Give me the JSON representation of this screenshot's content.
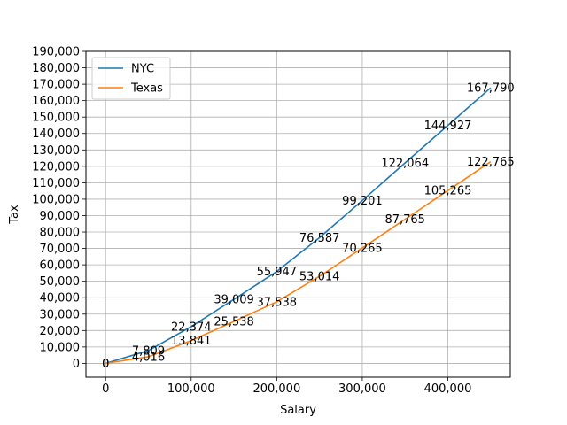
{
  "chart_data": {
    "type": "line",
    "title": "",
    "xlabel": "Salary",
    "ylabel": "Tax",
    "xlim": [
      -23000,
      473000
    ],
    "ylim": [
      -8400,
      190000
    ],
    "xticks": [
      0,
      100000,
      200000,
      300000,
      400000
    ],
    "xtick_labels": [
      "0",
      "100,000",
      "200,000",
      "300,000",
      "400,000"
    ],
    "yticks": [
      0,
      10000,
      20000,
      30000,
      40000,
      50000,
      60000,
      70000,
      80000,
      90000,
      100000,
      110000,
      120000,
      130000,
      140000,
      150000,
      160000,
      170000,
      180000,
      190000
    ],
    "ytick_labels": [
      "0",
      "10,000",
      "20,000",
      "30,000",
      "40,000",
      "50,000",
      "60,000",
      "70,000",
      "80,000",
      "90,000",
      "100,000",
      "110,000",
      "120,000",
      "130,000",
      "140,000",
      "150,000",
      "160,000",
      "170,000",
      "180,000",
      "190,000"
    ],
    "grid": true,
    "legend_position": "top-left",
    "series": [
      {
        "name": "NYC",
        "color": "#1f77b4",
        "x": [
          0,
          50000,
          100000,
          150000,
          200000,
          250000,
          300000,
          350000,
          400000,
          450000
        ],
        "y": [
          0,
          7809,
          22374,
          39009,
          55947,
          76587,
          99201,
          122064,
          144927,
          167790
        ],
        "labels": [
          "0",
          "7,809",
          "22,374",
          "39,009",
          "55,947",
          "76,587",
          "99,201",
          "122,064",
          "144,927",
          "167,790"
        ]
      },
      {
        "name": "Texas",
        "color": "#ff7f0e",
        "x": [
          0,
          50000,
          100000,
          150000,
          200000,
          250000,
          300000,
          350000,
          400000,
          450000
        ],
        "y": [
          0,
          4016,
          13841,
          25538,
          37538,
          53014,
          70265,
          87765,
          105265,
          122765
        ],
        "labels": [
          "0",
          "4,016",
          "13,841",
          "25,538",
          "37,538",
          "53,014",
          "70,265",
          "87,765",
          "105,265",
          "122,765"
        ]
      }
    ]
  }
}
